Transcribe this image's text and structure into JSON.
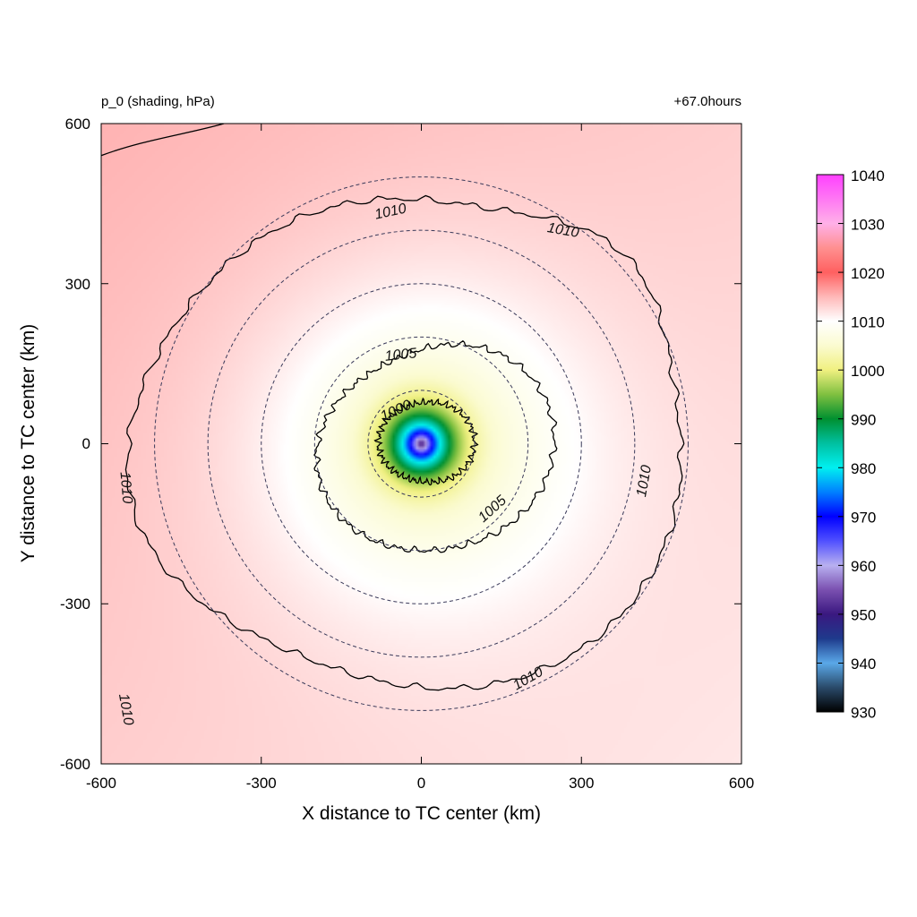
{
  "chart_data": {
    "type": "heatmap",
    "title_left": "p_0 (shading, hPa)",
    "title_right": "+67.0hours",
    "xlabel": "X distance to TC center (km)",
    "ylabel": "Y distance to TC center (km)",
    "xlim": [
      -600,
      600
    ],
    "ylim": [
      -600,
      600
    ],
    "x_ticks": [
      "-600",
      "-300",
      "0",
      "300",
      "600"
    ],
    "y_ticks": [
      "600",
      "300",
      "0",
      "-300",
      "-600"
    ],
    "colorbar": {
      "range": [
        930,
        1040
      ],
      "tick_labels": [
        "1040",
        "1030",
        "1020",
        "1010",
        "1000",
        "990",
        "980",
        "970",
        "960",
        "950",
        "940",
        "930"
      ],
      "stops": [
        {
          "value": 930,
          "color": "#000000"
        },
        {
          "value": 935,
          "color": "#2a4a6a"
        },
        {
          "value": 940,
          "color": "#5aa8e8"
        },
        {
          "value": 945,
          "color": "#1e3a8c"
        },
        {
          "value": 950,
          "color": "#3a1880"
        },
        {
          "value": 955,
          "color": "#7a50b0"
        },
        {
          "value": 960,
          "color": "#b8b0f0"
        },
        {
          "value": 965,
          "color": "#5050ff"
        },
        {
          "value": 970,
          "color": "#0000ff"
        },
        {
          "value": 975,
          "color": "#0080ff"
        },
        {
          "value": 980,
          "color": "#00f0f0"
        },
        {
          "value": 985,
          "color": "#00c0a0"
        },
        {
          "value": 990,
          "color": "#009030"
        },
        {
          "value": 995,
          "color": "#80c040"
        },
        {
          "value": 1000,
          "color": "#f0f080"
        },
        {
          "value": 1005,
          "color": "#fbfbd0"
        },
        {
          "value": 1010,
          "color": "#ffffff"
        },
        {
          "value": 1015,
          "color": "#ffb8b8"
        },
        {
          "value": 1020,
          "color": "#ff6060"
        },
        {
          "value": 1025,
          "color": "#ff9090"
        },
        {
          "value": 1030,
          "color": "#ffb0e8"
        },
        {
          "value": 1040,
          "color": "#ff40ff"
        }
      ]
    },
    "field": {
      "center_pressure": 960,
      "background_pressure": 1013.5
    },
    "contours": [
      {
        "level": 1000,
        "label": "1000"
      },
      {
        "level": 1005,
        "label": "1005"
      },
      {
        "level": 1005,
        "label": "1005"
      },
      {
        "level": 1010,
        "label": "1010"
      },
      {
        "level": 1010,
        "label": "1010"
      },
      {
        "level": 1010,
        "label": "1010"
      },
      {
        "level": 1010,
        "label": "1010"
      },
      {
        "level": 1010,
        "label": "1010"
      }
    ],
    "range_circles_km": [
      100,
      200,
      300,
      400,
      500
    ],
    "grid": false
  }
}
